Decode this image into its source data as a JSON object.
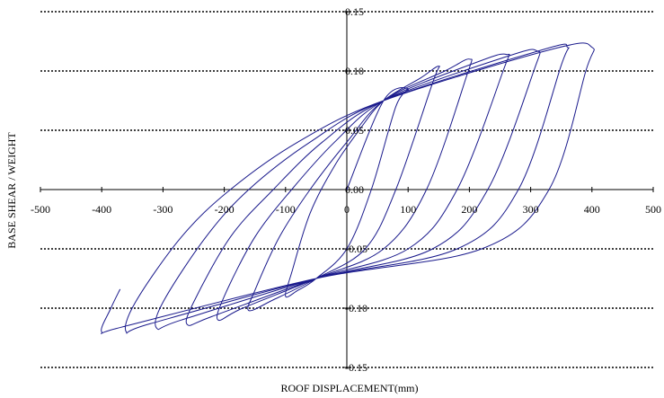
{
  "chart_data": {
    "type": "line",
    "title": "",
    "xlabel": "ROOF DISPLACEMENT(mm)",
    "ylabel": "BASE SHEAR / WEIGHT",
    "xlim": [
      -500,
      500
    ],
    "ylim": [
      -0.15,
      0.15
    ],
    "x_ticks": [
      "-500",
      "-400",
      "-300",
      "-200",
      "-100",
      "0",
      "100",
      "200",
      "300",
      "400",
      "500"
    ],
    "y_ticks": [
      "-0.15",
      "-0.10",
      "-0.05",
      "0.00",
      "0.05",
      "0.10",
      "0.15"
    ],
    "grid": "horizontal dotted",
    "legend": "none",
    "line_color": "#1a1a8c",
    "series": [
      {
        "values": [
          [
            0,
            0.0
          ],
          [
            60,
            0.075
          ],
          [
            100,
            0.085
          ],
          [
            80,
            0.07
          ],
          [
            40,
            0.0
          ],
          [
            0,
            -0.05
          ],
          [
            -50,
            -0.075
          ],
          [
            -80,
            -0.085
          ],
          [
            -100,
            -0.09
          ],
          [
            -90,
            -0.07
          ],
          [
            -60,
            -0.02
          ],
          [
            -20,
            0.02
          ],
          [
            20,
            0.05
          ],
          [
            60,
            0.075
          ],
          [
            120,
            0.094
          ],
          [
            150,
            0.104
          ],
          [
            140,
            0.09
          ],
          [
            80,
            0.0
          ],
          [
            30,
            -0.05
          ],
          [
            -50,
            -0.075
          ],
          [
            -120,
            -0.093
          ],
          [
            -160,
            -0.102
          ],
          [
            -150,
            -0.085
          ],
          [
            -110,
            -0.04
          ],
          [
            -60,
            0.0
          ],
          [
            0,
            0.04
          ],
          [
            60,
            0.075
          ],
          [
            160,
            0.1
          ],
          [
            200,
            0.11
          ],
          [
            195,
            0.095
          ],
          [
            130,
            0.0
          ],
          [
            60,
            -0.05
          ],
          [
            -50,
            -0.075
          ],
          [
            -170,
            -0.1
          ],
          [
            -210,
            -0.11
          ],
          [
            -200,
            -0.09
          ],
          [
            -150,
            -0.04
          ],
          [
            -90,
            0.0
          ],
          [
            -20,
            0.04
          ],
          [
            60,
            0.075
          ],
          [
            210,
            0.107
          ],
          [
            260,
            0.114
          ],
          [
            255,
            0.1
          ],
          [
            180,
            0.0
          ],
          [
            100,
            -0.05
          ],
          [
            -50,
            -0.075
          ],
          [
            -220,
            -0.107
          ],
          [
            -260,
            -0.114
          ],
          [
            -250,
            -0.095
          ],
          [
            -190,
            -0.04
          ],
          [
            -120,
            0.0
          ],
          [
            -40,
            0.04
          ],
          [
            60,
            0.075
          ],
          [
            260,
            0.112
          ],
          [
            310,
            0.117
          ],
          [
            305,
            0.1
          ],
          [
            230,
            0.0
          ],
          [
            140,
            -0.05
          ],
          [
            -50,
            -0.075
          ],
          [
            -270,
            -0.11
          ],
          [
            -310,
            -0.117
          ],
          [
            -300,
            -0.095
          ],
          [
            -230,
            -0.04
          ],
          [
            -160,
            0.0
          ],
          [
            -60,
            0.04
          ],
          [
            60,
            0.075
          ],
          [
            320,
            0.118
          ],
          [
            360,
            0.12
          ],
          [
            350,
            0.105
          ],
          [
            280,
            0.0
          ],
          [
            180,
            -0.05
          ],
          [
            -50,
            -0.075
          ],
          [
            -320,
            -0.113
          ],
          [
            -360,
            -0.12
          ],
          [
            -345,
            -0.095
          ],
          [
            -270,
            -0.04
          ],
          [
            -190,
            0.0
          ],
          [
            -80,
            0.04
          ],
          [
            60,
            0.075
          ],
          [
            340,
            0.119
          ],
          [
            400,
            0.12
          ],
          [
            390,
            0.1
          ],
          [
            330,
            0.0
          ],
          [
            220,
            -0.05
          ],
          [
            -50,
            -0.075
          ],
          [
            -360,
            -0.115
          ],
          [
            -400,
            -0.12
          ],
          [
            -385,
            -0.1
          ],
          [
            -370,
            -0.084
          ]
        ]
      }
    ]
  }
}
